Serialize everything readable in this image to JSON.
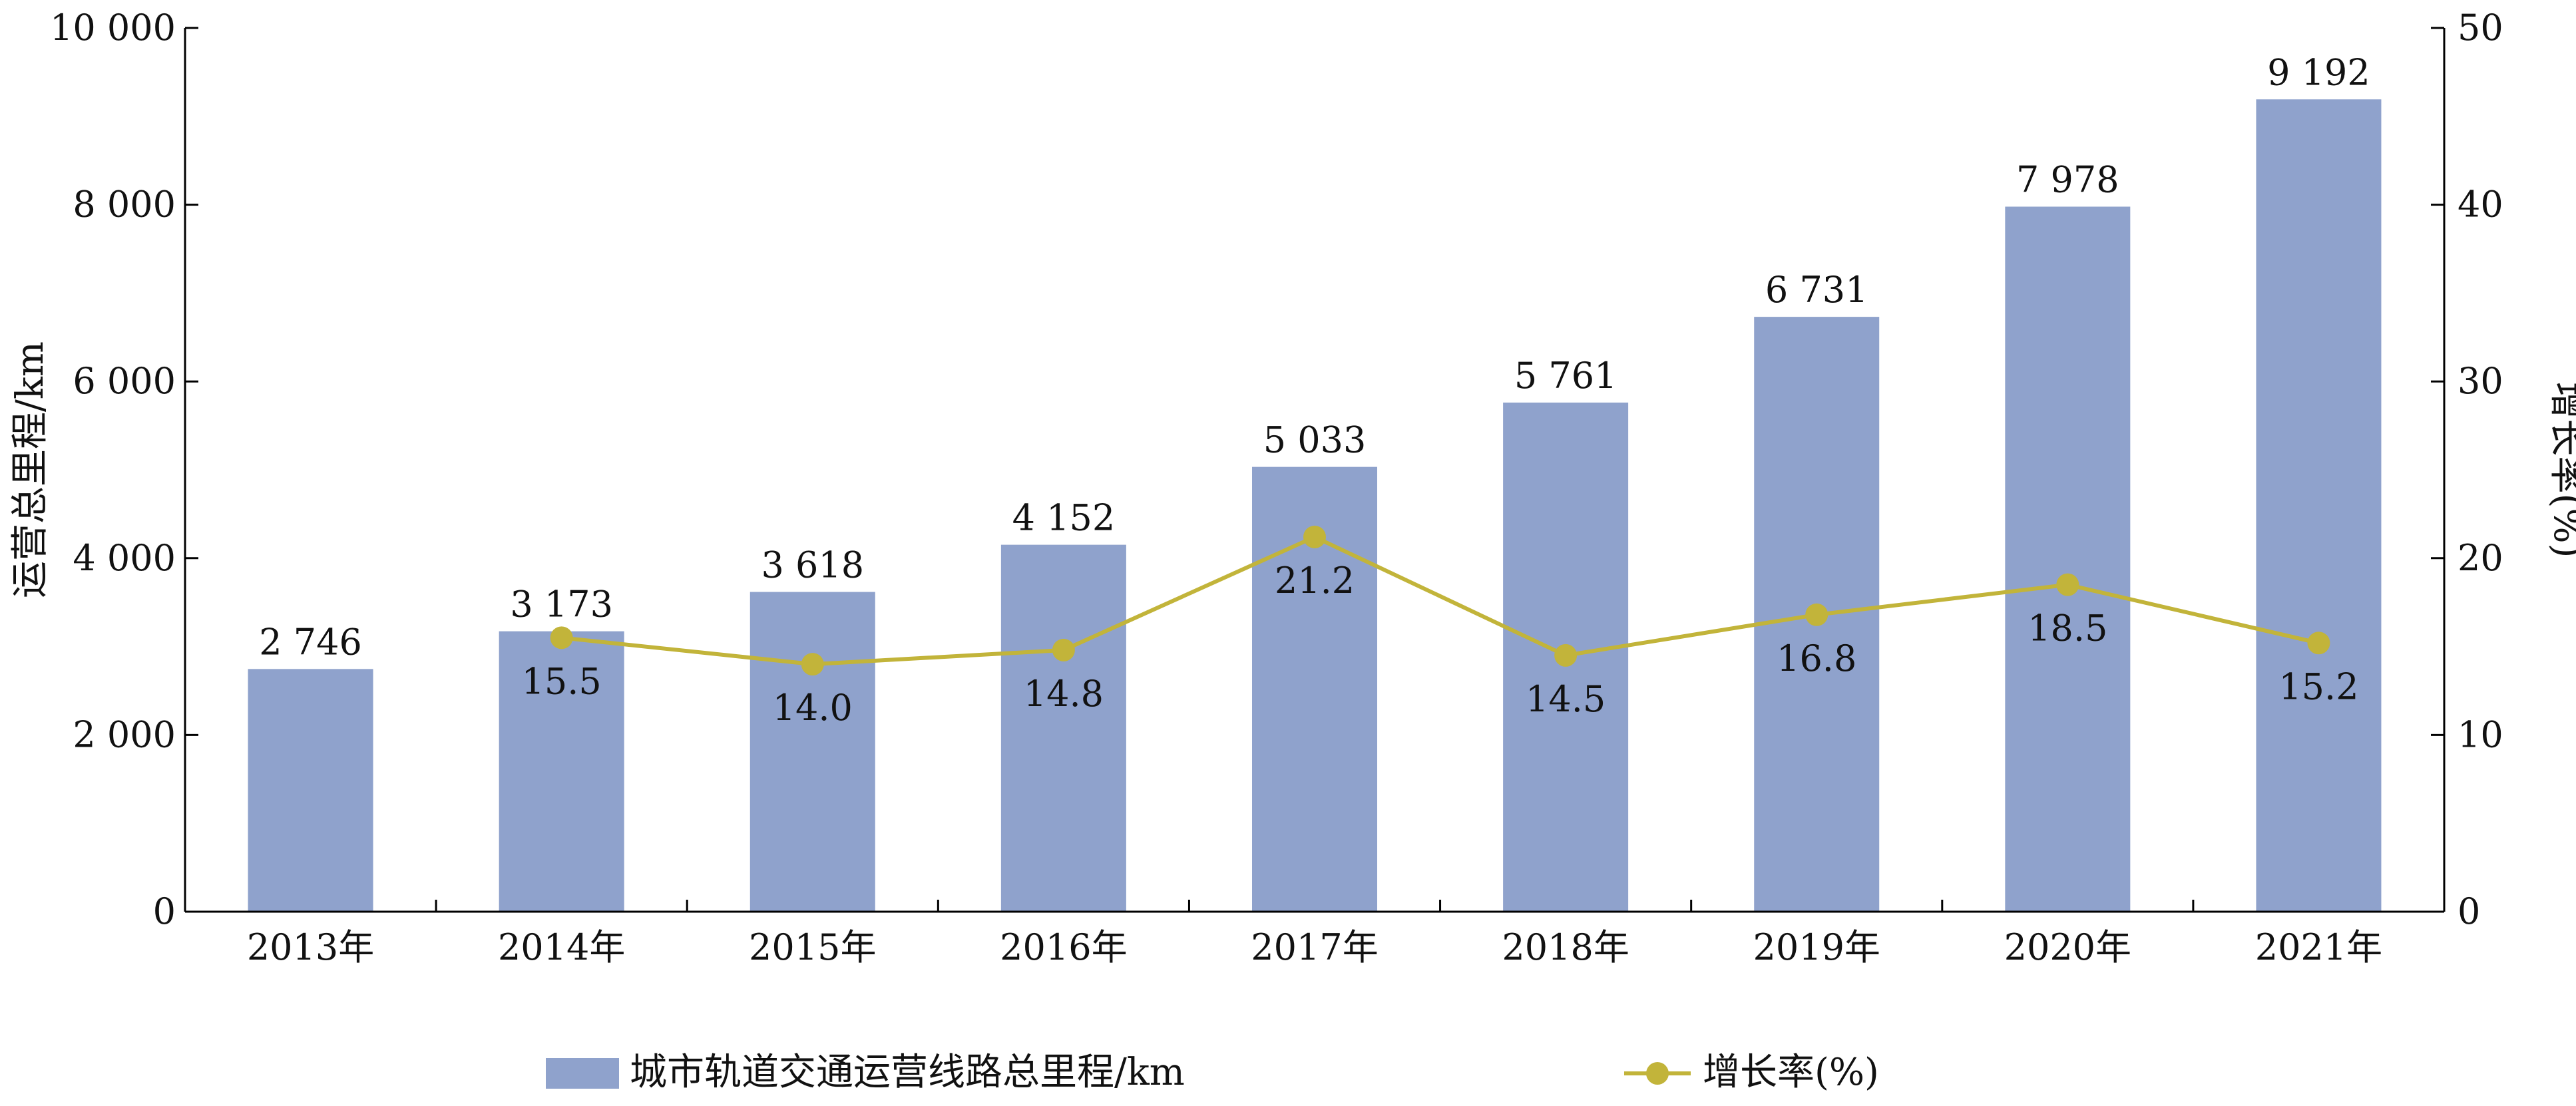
{
  "chart_data": {
    "type": "bar",
    "categories": [
      "2013年",
      "2014年",
      "2015年",
      "2016年",
      "2017年",
      "2018年",
      "2019年",
      "2020年",
      "2021年"
    ],
    "series": [
      {
        "name": "城市轨道交通运营线路总里程/km",
        "type": "bar",
        "axis": "left",
        "values": [
          2746,
          3173,
          3618,
          4152,
          5033,
          5761,
          6731,
          7978,
          9192
        ],
        "labels": [
          "2 746",
          "3 173",
          "3 618",
          "4 152",
          "5 033",
          "5 761",
          "6 731",
          "7 978",
          "9 192"
        ]
      },
      {
        "name": "增长率(%)",
        "type": "line",
        "axis": "right",
        "values": [
          null,
          15.5,
          14.0,
          14.8,
          21.2,
          14.5,
          16.8,
          18.5,
          15.2
        ],
        "labels": [
          "",
          "15.5",
          "14.0",
          "14.8",
          "21.2",
          "14.5",
          "16.8",
          "18.5",
          "15.2"
        ]
      }
    ],
    "ylabel": "运营总里程/km",
    "y2label": "增长率(%)",
    "ylim": [
      0,
      10000
    ],
    "y2lim": [
      0,
      50
    ],
    "yticks": [
      "0",
      "2 000",
      "4 000",
      "6 000",
      "8 000",
      "10 000"
    ],
    "y2ticks": [
      "0",
      "10",
      "20",
      "30",
      "40",
      "50"
    ],
    "legend_position": "bottom",
    "grid": false,
    "colors": {
      "bar": "#8fa2cc",
      "line": "#c2b43a",
      "axis": "#000000"
    }
  }
}
